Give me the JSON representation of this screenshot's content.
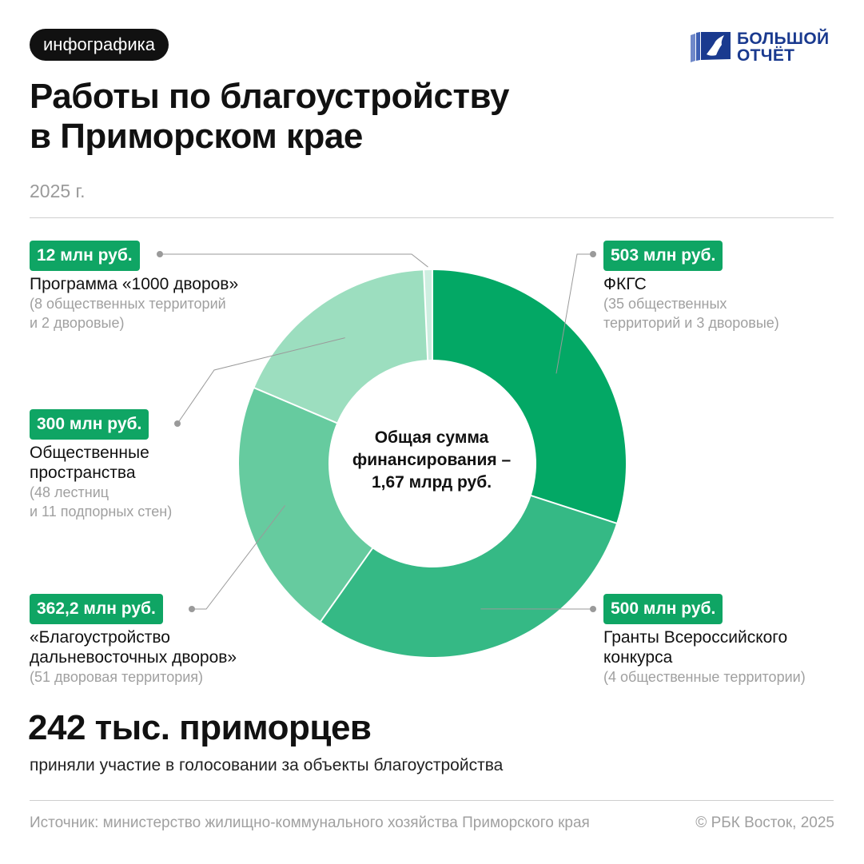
{
  "tag": "инфографика",
  "logo": {
    "line1": "БОЛЬШОЙ",
    "line2": "ОТЧЁТ"
  },
  "title_lines": [
    "Работы по благоустройству",
    "в Приморском крае"
  ],
  "year": "2025 г.",
  "center_lines": [
    "Общая сумма",
    "финансирования –",
    "1,67 млрд руб."
  ],
  "colors": {
    "accent": "#0fa564",
    "text": "#111111",
    "muted": "#a0a0a0"
  },
  "chart_data": {
    "type": "pie",
    "donut": true,
    "unit": "млн руб.",
    "total": "1,67 млрд руб.",
    "slices": [
      {
        "label": "ФКГС",
        "value": 503,
        "value_label": "503 млн руб.",
        "note_lines": [
          "(35 общественных",
          "территорий и 3 дворовые)"
        ],
        "name_lines": [
          "ФКГС"
        ],
        "color": "#03a865"
      },
      {
        "label": "Гранты Всероссийского конкурса",
        "value": 500,
        "value_label": "500 млн руб.",
        "name_lines": [
          "Гранты Всероссийского",
          "конкурса"
        ],
        "note_lines": [
          "(4 общественные территории)"
        ],
        "color": "#35b985"
      },
      {
        "label": "«Благоустройство дальневосточных дворов»",
        "value": 362.2,
        "value_label": "362,2 млн руб.",
        "name_lines": [
          "«Благоустройство",
          "дальневосточных дворов»"
        ],
        "note_lines": [
          "(51 дворовая территория)"
        ],
        "color": "#66cb9f"
      },
      {
        "label": "Общественные пространства",
        "value": 300,
        "value_label": "300 млн руб.",
        "name_lines": [
          "Общественные",
          "пространства"
        ],
        "note_lines": [
          "(48 лестниц",
          "и 11 подпорных стен)"
        ],
        "color": "#9cdebf"
      },
      {
        "label": "Программа «1000 дворов»",
        "value": 12,
        "value_label": "12 млн руб.",
        "name_lines": [
          "Программа «1000 дворов»"
        ],
        "note_lines": [
          "(8 общественных территорий",
          "и 2 дворовые)"
        ],
        "color": "#cdeee0"
      }
    ]
  },
  "big_number": "242 тыс. приморцев",
  "big_text": "приняли участие в голосовании за объекты благоустройства",
  "source": "Источник: министерство жилищно-коммунального хозяйства Приморского края",
  "copyright": "© РБК Восток, 2025"
}
